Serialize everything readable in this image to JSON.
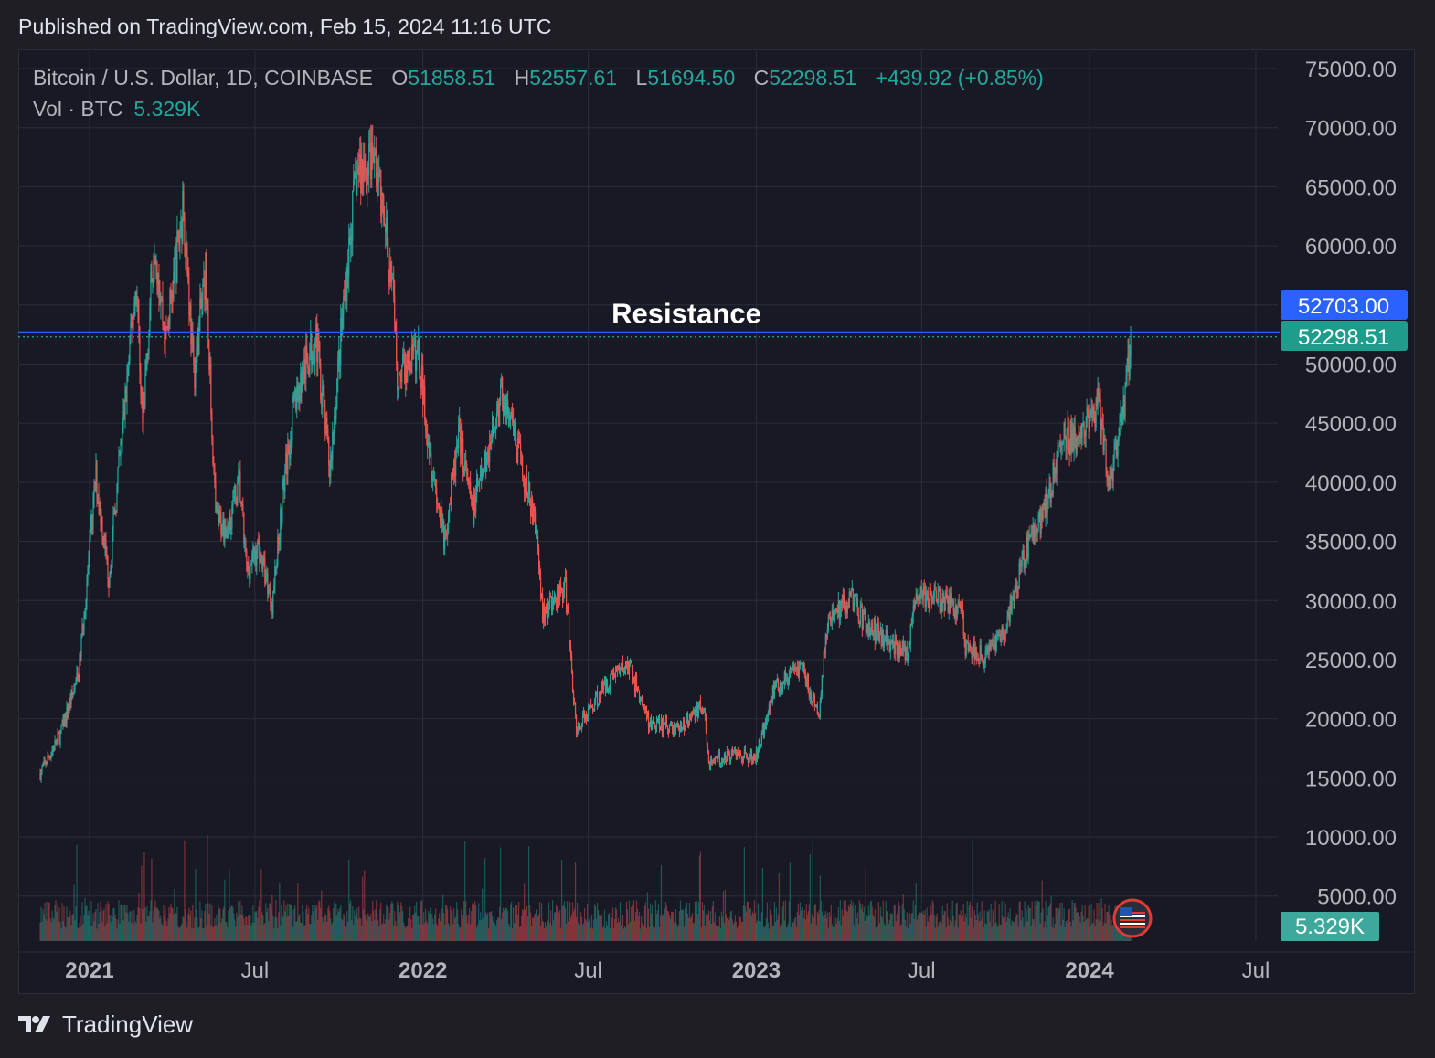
{
  "header": {
    "published": "Published on TradingView.com, Feb 15, 2024 11:16 UTC"
  },
  "legend": {
    "symbol": "Bitcoin / U.S. Dollar, 1D, COINBASE",
    "o_label": "O",
    "o_value": "51858.51",
    "h_label": "H",
    "h_value": "52557.61",
    "l_label": "L",
    "l_value": "51694.50",
    "c_label": "C",
    "c_value": "52298.51",
    "change": "+439.92 (+0.85%)",
    "vol_label": "Vol · BTC",
    "vol_value": "5.329K"
  },
  "footer": {
    "brand": "TradingView"
  },
  "colors": {
    "up": "#26a69a",
    "down": "#ef5350",
    "resistance": "#2962ff",
    "background": "#181924",
    "grid": "#2a2e39",
    "axis_text": "#b2b5be"
  },
  "chart_data": {
    "type": "candlestick",
    "title": "",
    "annotation": "Resistance",
    "resistance_level": 52703.0,
    "last_price": 52298.51,
    "last_price_label": "52298.51",
    "resistance_label": "52703.00",
    "last_volume_label": "5.329K",
    "y_ticks": [
      "75000.00",
      "70000.00",
      "65000.00",
      "60000.00",
      "50000.00",
      "45000.00",
      "40000.00",
      "35000.00",
      "30000.00",
      "25000.00",
      "20000.00",
      "15000.00",
      "10000.00",
      "5000.00"
    ],
    "y_tick_values": [
      75000,
      70000,
      65000,
      60000,
      50000,
      45000,
      40000,
      35000,
      30000,
      25000,
      20000,
      15000,
      10000,
      5000
    ],
    "ylim": [
      0,
      75000
    ],
    "x_ticks": [
      {
        "label": "2021",
        "date": "2021-01-01",
        "bold": true
      },
      {
        "label": "Jul",
        "date": "2021-07-01",
        "bold": false
      },
      {
        "label": "2022",
        "date": "2022-01-01",
        "bold": true
      },
      {
        "label": "Jul",
        "date": "2022-07-01",
        "bold": false
      },
      {
        "label": "2023",
        "date": "2023-01-01",
        "bold": true
      },
      {
        "label": "Jul",
        "date": "2023-07-01",
        "bold": false
      },
      {
        "label": "2024",
        "date": "2024-01-01",
        "bold": true
      },
      {
        "label": "Jul",
        "date": "2024-07-01",
        "bold": false
      }
    ],
    "xlim": [
      "2020-11-08",
      "2024-08-09"
    ],
    "price_path": [
      {
        "date": "2020-11-08",
        "close": 15400
      },
      {
        "date": "2020-11-30",
        "close": 18700
      },
      {
        "date": "2020-12-20",
        "close": 23800
      },
      {
        "date": "2021-01-08",
        "close": 40500
      },
      {
        "date": "2021-01-22",
        "close": 32000
      },
      {
        "date": "2021-02-08",
        "close": 46000
      },
      {
        "date": "2021-02-21",
        "close": 57000
      },
      {
        "date": "2021-02-28",
        "close": 45000
      },
      {
        "date": "2021-03-13",
        "close": 61000
      },
      {
        "date": "2021-03-25",
        "close": 52000
      },
      {
        "date": "2021-04-14",
        "close": 63500
      },
      {
        "date": "2021-04-25",
        "close": 49000
      },
      {
        "date": "2021-05-08",
        "close": 58000
      },
      {
        "date": "2021-05-19",
        "close": 37000
      },
      {
        "date": "2021-05-31",
        "close": 36000
      },
      {
        "date": "2021-06-14",
        "close": 40000
      },
      {
        "date": "2021-06-22",
        "close": 32500
      },
      {
        "date": "2021-07-05",
        "close": 34500
      },
      {
        "date": "2021-07-20",
        "close": 29800
      },
      {
        "date": "2021-08-01",
        "close": 39500
      },
      {
        "date": "2021-08-14",
        "close": 47000
      },
      {
        "date": "2021-09-06",
        "close": 52500
      },
      {
        "date": "2021-09-21",
        "close": 41000
      },
      {
        "date": "2021-10-06",
        "close": 55000
      },
      {
        "date": "2021-10-20",
        "close": 66000
      },
      {
        "date": "2021-11-10",
        "close": 67500
      },
      {
        "date": "2021-11-28",
        "close": 57000
      },
      {
        "date": "2021-12-04",
        "close": 49000
      },
      {
        "date": "2021-12-27",
        "close": 51000
      },
      {
        "date": "2022-01-10",
        "close": 42000
      },
      {
        "date": "2022-01-24",
        "close": 35000
      },
      {
        "date": "2022-02-10",
        "close": 44000
      },
      {
        "date": "2022-02-24",
        "close": 37500
      },
      {
        "date": "2022-03-29",
        "close": 47500
      },
      {
        "date": "2022-04-20",
        "close": 41000
      },
      {
        "date": "2022-05-05",
        "close": 36000
      },
      {
        "date": "2022-05-12",
        "close": 29000
      },
      {
        "date": "2022-06-06",
        "close": 31000
      },
      {
        "date": "2022-06-18",
        "close": 19000
      },
      {
        "date": "2022-07-08",
        "close": 21500
      },
      {
        "date": "2022-07-30",
        "close": 24000
      },
      {
        "date": "2022-08-15",
        "close": 24500
      },
      {
        "date": "2022-09-06",
        "close": 19500
      },
      {
        "date": "2022-10-10",
        "close": 19200
      },
      {
        "date": "2022-11-05",
        "close": 21200
      },
      {
        "date": "2022-11-10",
        "close": 16300
      },
      {
        "date": "2022-12-10",
        "close": 17100
      },
      {
        "date": "2022-12-31",
        "close": 16600
      },
      {
        "date": "2023-01-20",
        "close": 22500
      },
      {
        "date": "2023-02-20",
        "close": 24500
      },
      {
        "date": "2023-03-10",
        "close": 20000
      },
      {
        "date": "2023-03-20",
        "close": 28000
      },
      {
        "date": "2023-04-14",
        "close": 30400
      },
      {
        "date": "2023-05-01",
        "close": 28000
      },
      {
        "date": "2023-06-15",
        "close": 25500
      },
      {
        "date": "2023-06-25",
        "close": 30500
      },
      {
        "date": "2023-07-14",
        "close": 30200
      },
      {
        "date": "2023-08-14",
        "close": 29300
      },
      {
        "date": "2023-08-18",
        "close": 26000
      },
      {
        "date": "2023-09-11",
        "close": 25200
      },
      {
        "date": "2023-10-02",
        "close": 27800
      },
      {
        "date": "2023-10-24",
        "close": 34500
      },
      {
        "date": "2023-11-10",
        "close": 37300
      },
      {
        "date": "2023-12-05",
        "close": 44000
      },
      {
        "date": "2023-12-20",
        "close": 43500
      },
      {
        "date": "2024-01-11",
        "close": 46500
      },
      {
        "date": "2024-01-23",
        "close": 39500
      },
      {
        "date": "2024-02-01",
        "close": 43000
      },
      {
        "date": "2024-02-09",
        "close": 47500
      },
      {
        "date": "2024-02-15",
        "close": 52298.51
      }
    ],
    "volume_scale_max_btc": 60000
  }
}
